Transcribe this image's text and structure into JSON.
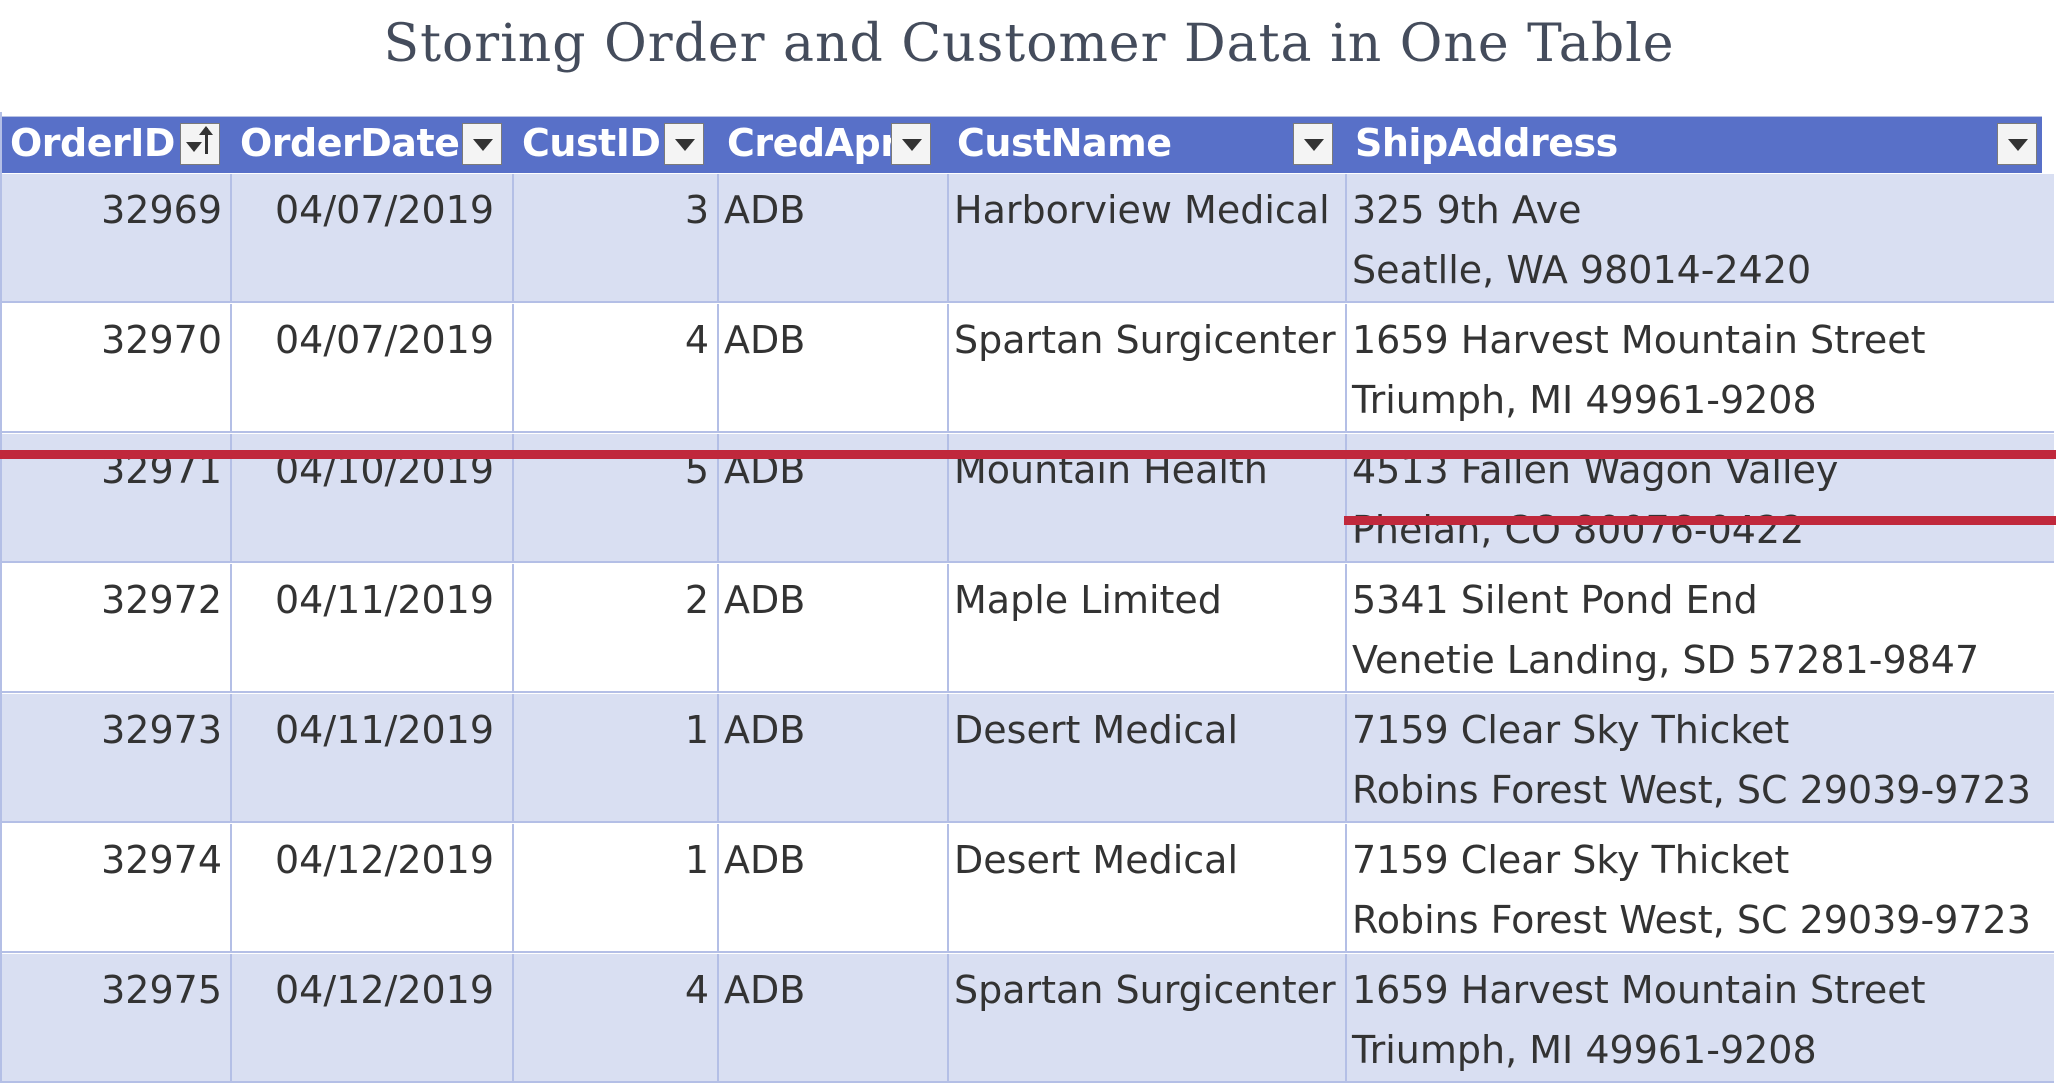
{
  "title": "Storing Order and Customer Data in One Table",
  "columns": [
    {
      "key": "order_id",
      "label": "OrderID"
    },
    {
      "key": "order_date",
      "label": "OrderDate"
    },
    {
      "key": "cust_id",
      "label": "CustID"
    },
    {
      "key": "cred_apr",
      "label": "CredApr"
    },
    {
      "key": "cust_name",
      "label": "CustName"
    },
    {
      "key": "ship_address",
      "label": "ShipAddress"
    }
  ],
  "sort": {
    "column": "OrderID",
    "direction": "ascending"
  },
  "rows": [
    {
      "order_id": "32969",
      "order_date": "04/07/2019",
      "cust_id": "3",
      "cred_apr": "ADB",
      "cust_name": "Harborview Medical",
      "ship_line1": "325 9th Ave",
      "ship_line2": "Seatlle, WA 98014-2420",
      "struck": false
    },
    {
      "order_id": "32970",
      "order_date": "04/07/2019",
      "cust_id": "4",
      "cred_apr": "ADB",
      "cust_name": "Spartan Surgicenter",
      "ship_line1": "1659 Harvest Mountain Street",
      "ship_line2": "Triumph, MI 49961-9208",
      "struck": false
    },
    {
      "order_id": "32971",
      "order_date": "04/10/2019",
      "cust_id": "5",
      "cred_apr": "ADB",
      "cust_name": "Mountain Health",
      "ship_line1": "4513 Fallen Wagon Valley",
      "ship_line2": "Phelan, CO 80076-0422",
      "struck": true
    },
    {
      "order_id": "32972",
      "order_date": "04/11/2019",
      "cust_id": "2",
      "cred_apr": "ADB",
      "cust_name": "Maple Limited",
      "ship_line1": "5341 Silent Pond End",
      "ship_line2": "Venetie Landing, SD 57281-9847",
      "struck": false
    },
    {
      "order_id": "32973",
      "order_date": "04/11/2019",
      "cust_id": "1",
      "cred_apr": "ADB",
      "cust_name": "Desert Medical",
      "ship_line1": "7159 Clear Sky Thicket",
      "ship_line2": "Robins Forest West, SC 29039-9723",
      "struck": false
    },
    {
      "order_id": "32974",
      "order_date": "04/12/2019",
      "cust_id": "1",
      "cred_apr": "ADB",
      "cust_name": "Desert Medical",
      "ship_line1": "7159 Clear Sky Thicket",
      "ship_line2": "Robins Forest West, SC 29039-9723",
      "struck": false
    },
    {
      "order_id": "32975",
      "order_date": "04/12/2019",
      "cust_id": "4",
      "cred_apr": "ADB",
      "cust_name": "Spartan Surgicenter",
      "ship_line1": "1659 Harvest Mountain Street",
      "ship_line2": "Triumph, MI 49961-9208",
      "struck": false
    }
  ],
  "colors": {
    "header_bg": "#5870c8",
    "band_bg": "#d9dff2",
    "grid": "#b4bfe6",
    "strike": "#c0283c"
  },
  "icons": {
    "sort_filter": "sort-ascending-filter-icon",
    "filter": "filter-dropdown-icon"
  }
}
